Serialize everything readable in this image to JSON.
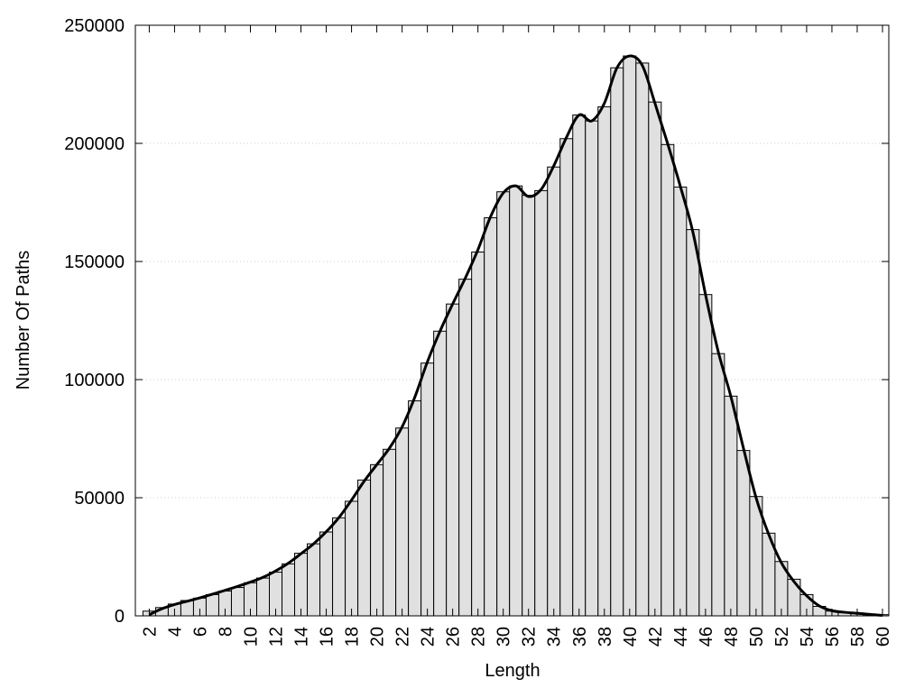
{
  "chart_data": {
    "type": "histogram",
    "x_label": "Length",
    "y_label": "Number Of Paths",
    "x": [
      2,
      3,
      4,
      5,
      6,
      7,
      8,
      9,
      10,
      11,
      12,
      13,
      14,
      15,
      16,
      17,
      18,
      19,
      20,
      21,
      22,
      23,
      24,
      25,
      26,
      27,
      28,
      29,
      30,
      31,
      32,
      33,
      34,
      35,
      36,
      37,
      38,
      39,
      40,
      41,
      42,
      43,
      44,
      45,
      46,
      47,
      48,
      49,
      50,
      51,
      52,
      53,
      54,
      55,
      56,
      57,
      58,
      59,
      60
    ],
    "bars": {
      "color": "#e0e0e0",
      "values": [
        2000,
        3500,
        5000,
        6500,
        7500,
        9000,
        10500,
        12000,
        14000,
        16000,
        18500,
        22000,
        26500,
        30500,
        35500,
        41500,
        48500,
        57500,
        64000,
        70500,
        79500,
        91000,
        107000,
        120500,
        132000,
        142500,
        154000,
        168500,
        179500,
        182000,
        178000,
        180000,
        190000,
        202000,
        212000,
        209500,
        215500,
        232000,
        237000,
        234000,
        217500,
        199500,
        181500,
        163500,
        136000,
        111000,
        93000,
        70000,
        50500,
        35000,
        23000,
        15500,
        9000,
        4000,
        2000,
        1500,
        1200,
        800,
        500
      ]
    },
    "curve": {
      "color": "#000000",
      "values": [
        500,
        3000,
        4800,
        6200,
        7600,
        9200,
        10800,
        12500,
        14300,
        16300,
        19000,
        22300,
        26300,
        30500,
        35600,
        41600,
        49000,
        57000,
        64000,
        71000,
        80000,
        92500,
        107500,
        120500,
        132000,
        143000,
        155000,
        169000,
        179000,
        182000,
        177500,
        180500,
        190500,
        202500,
        212000,
        209500,
        217000,
        232000,
        237000,
        233000,
        217000,
        200000,
        182000,
        162500,
        136000,
        112000,
        93000,
        71000,
        50000,
        34500,
        22500,
        14500,
        8500,
        4200,
        2200,
        1500,
        1100,
        600,
        200
      ]
    },
    "xlim": [
      0.9,
      60.5
    ],
    "xticks": [
      2,
      4,
      6,
      8,
      10,
      12,
      14,
      16,
      18,
      20,
      22,
      24,
      26,
      28,
      30,
      32,
      34,
      36,
      38,
      40,
      42,
      44,
      46,
      48,
      50,
      52,
      54,
      56,
      58,
      60
    ],
    "ylim": [
      0,
      250000
    ],
    "yticks": [
      0,
      50000,
      100000,
      150000,
      200000,
      250000
    ],
    "grid": true
  }
}
